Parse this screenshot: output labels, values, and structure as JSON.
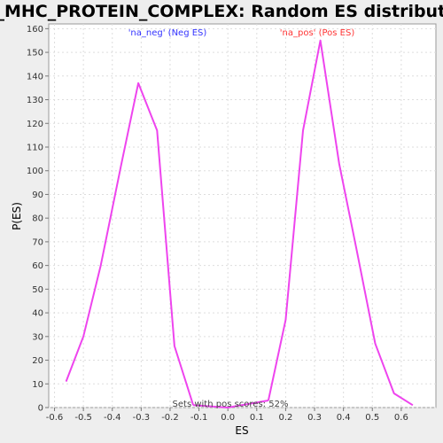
{
  "chart_data": {
    "type": "line",
    "title": "GO_MHC_PROTEIN_COMPLEX: Random ES distribution",
    "xlabel": "ES",
    "ylabel": "P(ES)",
    "xlim": [
      -0.62,
      0.72
    ],
    "ylim": [
      0,
      162
    ],
    "grid": true,
    "x_ticks": [
      "-0.6",
      "-0.5",
      "-0.4",
      "-0.3",
      "-0.2",
      "-0.1",
      "0.0",
      "0.1",
      "0.2",
      "0.3",
      "0.4",
      "0.5",
      "0.6"
    ],
    "y_ticks": [
      "0",
      "10",
      "20",
      "30",
      "40",
      "50",
      "60",
      "70",
      "80",
      "90",
      "100",
      "110",
      "120",
      "130",
      "140",
      "150",
      "160"
    ],
    "series": [
      {
        "name": "'na_neg' (Neg ES)",
        "color": "#ee44ee",
        "x": [
          -0.56,
          -0.5,
          -0.44,
          -0.37,
          -0.31,
          -0.245,
          -0.185,
          -0.12
        ],
        "y": [
          11,
          30,
          60,
          102,
          137,
          117,
          26,
          1
        ]
      },
      {
        "name": "'na_pos' (Pos ES)",
        "color": "#ee44ee",
        "x": [
          0.14,
          0.2,
          0.26,
          0.32,
          0.385,
          0.445,
          0.51,
          0.575,
          0.64
        ],
        "y": [
          3,
          37,
          117,
          155,
          103,
          67,
          27,
          6,
          1
        ]
      }
    ],
    "bridge": {
      "x": [
        -0.12,
        0.0,
        0.14
      ],
      "y": [
        1,
        0,
        3
      ]
    },
    "legend": [
      {
        "label": "'na_neg' (Neg ES)",
        "color": "#3333ff"
      },
      {
        "label": "'na_pos' (Pos ES)",
        "color": "#ff3333"
      }
    ],
    "annotation": "Sets with pos scores: 52%"
  }
}
